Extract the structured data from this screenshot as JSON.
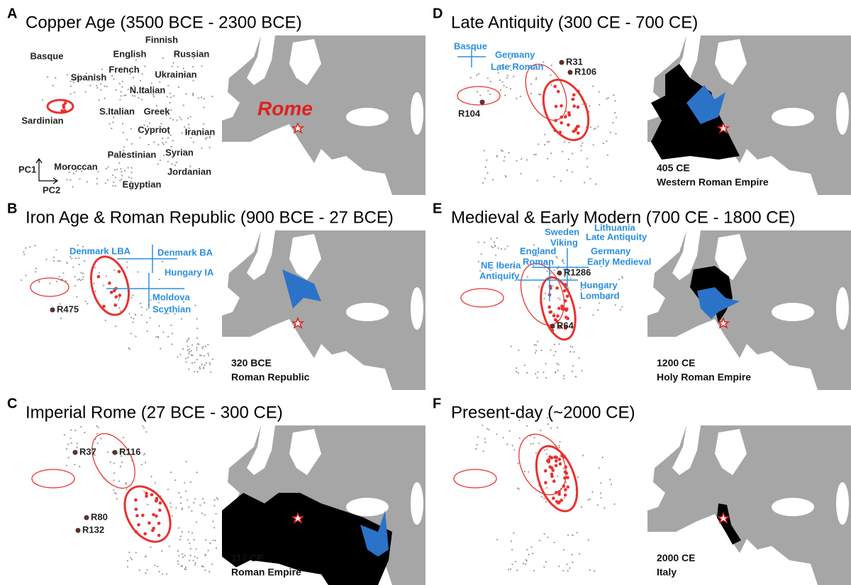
{
  "panels": [
    {
      "letter": "A",
      "title": "Copper Age (3500 BCE - 2300 BCE)",
      "populations": [
        "Finnish",
        "English",
        "Russian",
        "Basque",
        "French",
        "Ukrainian",
        "Spanish",
        "N.Italian",
        "S.Italian",
        "Greek",
        "Sardinian",
        "Cypriot",
        "Iranian",
        "Palestinian",
        "Syrian",
        "Moroccan",
        "Jordanian",
        "Egyptian"
      ],
      "axis_labels": [
        "PC1",
        "PC2"
      ],
      "map_label": "Rome"
    },
    {
      "letter": "B",
      "title": "Iron Age & Roman Republic (900 BCE - 27 BCE)",
      "populations": [
        "Denmark LBA",
        "Denmark BA",
        "Hungary IA",
        "Moldova",
        "Scythian"
      ],
      "samples": [
        "R475"
      ],
      "caption": [
        "320 BCE",
        "Roman Republic"
      ]
    },
    {
      "letter": "C",
      "title": "Imperial Rome (27 BCE - 300 CE)",
      "samples": [
        "R37",
        "R116",
        "R80",
        "R132"
      ],
      "caption": [
        "117 CE",
        "Roman Empire"
      ]
    },
    {
      "letter": "D",
      "title": "Late Antiquity  (300 CE - 700 CE)",
      "populations": [
        "Basque",
        "Germany",
        "Late Roman"
      ],
      "samples": [
        "R31",
        "R106",
        "R104"
      ],
      "caption": [
        "405 CE",
        "Western Roman Empire"
      ]
    },
    {
      "letter": "E",
      "title": "Medieval & Early Modern (700 CE - 1800 CE)",
      "populations": [
        "Lithuania",
        "Late Antiquity",
        "Sweden",
        "Viking",
        "Germany",
        "England",
        "Early Medieval",
        "Roman",
        "NE Iberia",
        "Antiquity",
        "Hungary",
        "Lombard"
      ],
      "samples": [
        "R1286",
        "R64"
      ],
      "caption": [
        "1200 CE",
        "Holy Roman Empire"
      ]
    },
    {
      "letter": "F",
      "title": "Present-day (~2000 CE)",
      "caption": [
        "2000 CE",
        "Italy"
      ]
    }
  ]
}
